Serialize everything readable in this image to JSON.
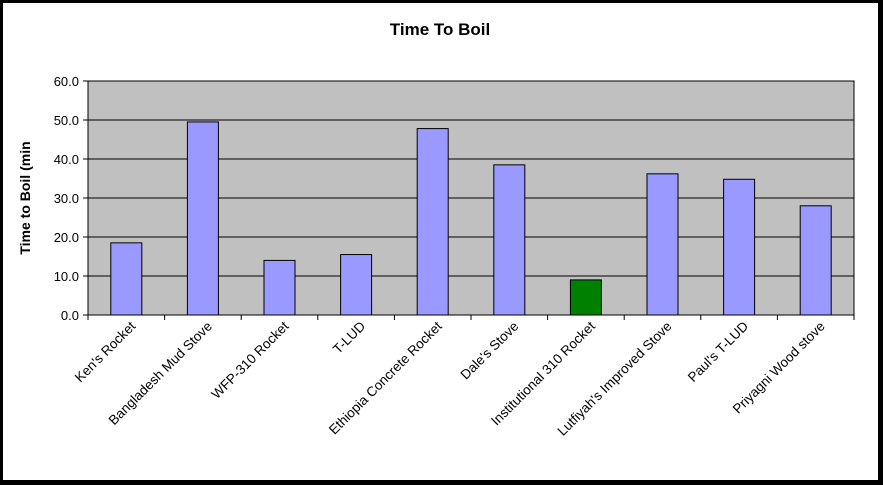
{
  "chart_data": {
    "type": "bar",
    "title": "Time To Boil",
    "ylabel": "Time to Boil (min",
    "xlabel": "",
    "categories": [
      "Ken's Rocket",
      "Bangladesh Mud Stove",
      "WFP-310 Rocket",
      "T-LUD",
      "Ethiopia Concrete Rocket",
      "Dale's Stove",
      "Institutional 310 Rocket",
      "Lutfiyah's Improved Stove",
      "Paul's T-LUD",
      "Priyagni Wood stove"
    ],
    "values": [
      18.5,
      49.5,
      14.0,
      15.5,
      47.8,
      38.5,
      9.0,
      36.2,
      34.8,
      28.0
    ],
    "ylim": [
      0,
      60
    ],
    "yticks": [
      "0.0",
      "10.0",
      "20.0",
      "30.0",
      "40.0",
      "50.0",
      "60.0"
    ],
    "grid": true,
    "legend": "none",
    "colors": {
      "bar": "#9999ff",
      "highlight_bar": "#008000",
      "plot_area": "#c0c0c0",
      "border": "#000000"
    },
    "highlight_index": 6
  }
}
